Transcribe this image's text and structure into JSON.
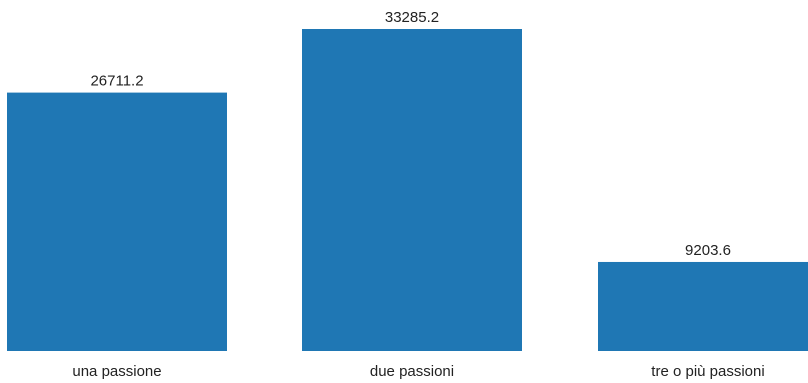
{
  "chart_data": {
    "type": "bar",
    "categories": [
      "una passione",
      "due passioni",
      "tre o più passioni"
    ],
    "values": [
      26711.2,
      33285.2,
      9203.6
    ],
    "value_labels": [
      "26711.2",
      "33285.2",
      "9203.6"
    ],
    "ylim": [
      0,
      33285.2
    ],
    "grid": false,
    "legend": "none",
    "bar_color": "#1f77b4"
  }
}
